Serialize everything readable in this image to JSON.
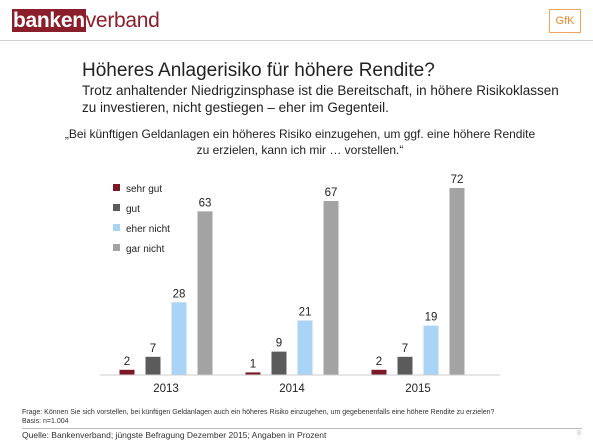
{
  "header": {
    "logo_part1": "banken",
    "logo_part2": "verband",
    "partner_logo": "GfK"
  },
  "title": "Höheres Anlagerisiko für höhere Rendite?",
  "subtitle": "Trotz anhaltender Niedrigzinsphase ist die Bereitschaft, in höhere Risikoklassen zu investieren, nicht gestiegen – eher im Gegenteil.",
  "quote": "„Bei künftigen Geldanlagen ein höheres Risiko einzugehen, um ggf. eine höhere Rendite zu erzielen, kann ich mir … vorstellen.“",
  "footnote": {
    "question": "Frage: Können Sie sich vorstellen, bei künftigen Geldanlagen auch ein höheres Risiko einzugehen, um gegebenenfalls eine höhere Rendite zu erzielen?",
    "basis": "Basis: n=1.004"
  },
  "source": "Quelle: Bankenverband; jüngste Befragung Dezember 2015; Angaben in Prozent",
  "page_number": "8",
  "colors": {
    "sehr_gut": "#7a1a26",
    "gut": "#5b5b5b",
    "eher_nicht": "#a9d4f5",
    "gar_nicht": "#a3a3a3"
  },
  "chart_data": {
    "type": "bar",
    "categories": [
      "2013",
      "2014",
      "2015"
    ],
    "series": [
      {
        "name": "sehr gut",
        "values": [
          2,
          1,
          2
        ],
        "color": "#7a1a26"
      },
      {
        "name": "gut",
        "values": [
          7,
          9,
          7
        ],
        "color": "#5b5b5b"
      },
      {
        "name": "eher nicht",
        "values": [
          28,
          21,
          19
        ],
        "color": "#a9d4f5"
      },
      {
        "name": "gar nicht",
        "values": [
          63,
          67,
          72
        ],
        "color": "#a3a3a3"
      }
    ],
    "ylim": [
      0,
      72
    ],
    "grid": false,
    "legend": "top-left",
    "data_labels": true
  }
}
